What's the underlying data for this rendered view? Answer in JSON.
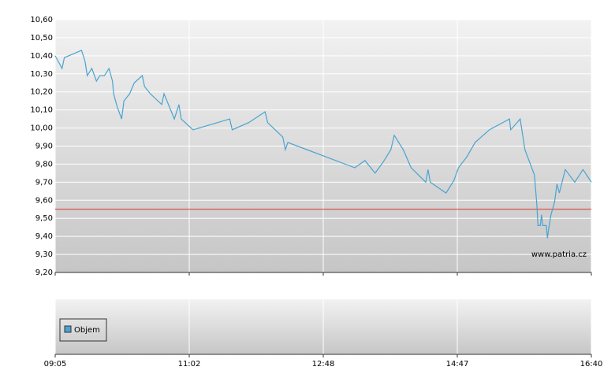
{
  "chart_data": {
    "type": "line",
    "x": [
      "09:05",
      "09:11",
      "09:13",
      "09:28",
      "09:31",
      "09:33",
      "09:37",
      "09:41",
      "09:44",
      "09:48",
      "09:52",
      "09:55",
      "09:56",
      "09:59",
      "10:03",
      "10:05",
      "10:10",
      "10:14",
      "10:21",
      "10:23",
      "10:28",
      "10:38",
      "10:40",
      "10:49",
      "10:53",
      "10:55",
      "11:05",
      "11:34",
      "11:36",
      "11:49",
      "12:02",
      "12:04",
      "12:16",
      "12:18",
      "12:20",
      "13:16",
      "13:25",
      "13:34",
      "13:41",
      "13:48",
      "13:51",
      "13:59",
      "14:06",
      "14:19",
      "14:21",
      "14:23",
      "14:37",
      "14:44",
      "14:48",
      "14:55",
      "15:02",
      "15:14",
      "15:31",
      "15:32",
      "15:40",
      "15:44",
      "15:52",
      "15:54",
      "15:55",
      "15:57",
      "15:58",
      "15:59",
      "16:02",
      "16:03",
      "16:04",
      "16:06",
      "16:09",
      "16:11",
      "16:13",
      "16:18",
      "16:26",
      "16:33",
      "16:40"
    ],
    "values": [
      10.4,
      10.33,
      10.39,
      10.43,
      10.37,
      10.29,
      10.33,
      10.26,
      10.29,
      10.29,
      10.33,
      10.26,
      10.19,
      10.12,
      10.05,
      10.15,
      10.19,
      10.25,
      10.29,
      10.23,
      10.19,
      10.13,
      10.19,
      10.05,
      10.13,
      10.05,
      9.99,
      10.05,
      9.99,
      10.03,
      10.09,
      10.03,
      9.95,
      9.88,
      9.92,
      9.78,
      9.82,
      9.75,
      9.81,
      9.88,
      9.96,
      9.88,
      9.78,
      9.7,
      9.77,
      9.7,
      9.64,
      9.71,
      9.78,
      9.84,
      9.92,
      9.99,
      10.05,
      9.99,
      10.05,
      9.88,
      9.74,
      9.58,
      9.46,
      9.46,
      9.52,
      9.46,
      9.46,
      9.39,
      9.44,
      9.52,
      9.59,
      9.69,
      9.64,
      9.77,
      9.7,
      9.77,
      9.7
    ],
    "color": "#4aa3d0",
    "ylim": [
      9.2,
      10.6
    ],
    "yticks": [
      {
        "value": 9.2,
        "label": "9,20"
      },
      {
        "value": 9.3,
        "label": "9,30"
      },
      {
        "value": 9.4,
        "label": "9,40"
      },
      {
        "value": 9.5,
        "label": "9,50"
      },
      {
        "value": 9.6,
        "label": "9,60"
      },
      {
        "value": 9.7,
        "label": "9,70"
      },
      {
        "value": 9.8,
        "label": "9,80"
      },
      {
        "value": 9.9,
        "label": "9,90"
      },
      {
        "value": 10.0,
        "label": "10,00"
      },
      {
        "value": 10.1,
        "label": "10,10"
      },
      {
        "value": 10.2,
        "label": "10,20"
      },
      {
        "value": 10.3,
        "label": "10,30"
      },
      {
        "value": 10.4,
        "label": "10,40"
      },
      {
        "value": 10.5,
        "label": "10,50"
      },
      {
        "value": 10.6,
        "label": "10,60"
      }
    ],
    "xticks": [
      "09:05",
      "11:02",
      "12:48",
      "14:47",
      "16:40"
    ],
    "reference_line": {
      "value": 9.55,
      "color": "#e03030"
    },
    "watermark": "www.patria.cz",
    "volume_legend": {
      "name": "Objem",
      "color": "#4aa3d0"
    },
    "grid": true
  }
}
